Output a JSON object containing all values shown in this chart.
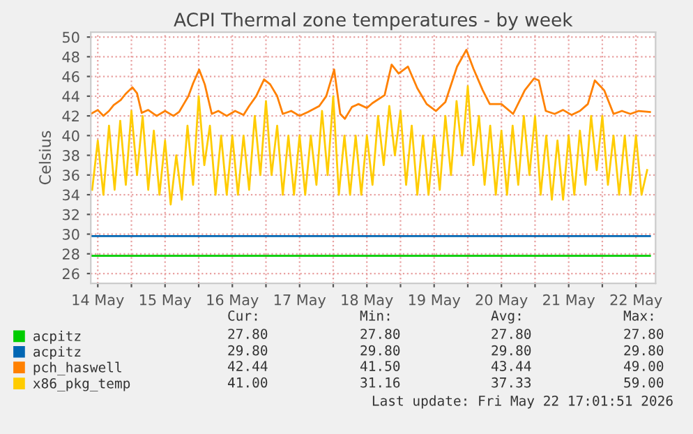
{
  "chart_data": {
    "type": "line",
    "title": "ACPI Thermal zone temperatures - by week",
    "ylabel": "Celsius",
    "xlim": [
      "2026-05-14T09:30",
      "2026-05-22T19:00"
    ],
    "xticks": [
      {
        "value": "2026-05-14T12:00",
        "label": "14 May"
      },
      {
        "value": "2026-05-15T00:00",
        "label": null
      },
      {
        "value": "2026-05-15T12:00",
        "label": "15 May"
      },
      {
        "value": "2026-05-16T00:00",
        "label": null
      },
      {
        "value": "2026-05-16T12:00",
        "label": "16 May"
      },
      {
        "value": "2026-05-17T00:00",
        "label": null
      },
      {
        "value": "2026-05-17T12:00",
        "label": "17 May"
      },
      {
        "value": "2026-05-18T00:00",
        "label": null
      },
      {
        "value": "2026-05-18T12:00",
        "label": "18 May"
      },
      {
        "value": "2026-05-19T00:00",
        "label": null
      },
      {
        "value": "2026-05-19T12:00",
        "label": "19 May"
      },
      {
        "value": "2026-05-20T00:00",
        "label": null
      },
      {
        "value": "2026-05-20T12:00",
        "label": "20 May"
      },
      {
        "value": "2026-05-21T00:00",
        "label": null
      },
      {
        "value": "2026-05-21T12:00",
        "label": "21 May"
      },
      {
        "value": "2026-05-22T00:00",
        "label": null
      },
      {
        "value": "2026-05-22T12:00",
        "label": "22 May"
      }
    ],
    "ylim": [
      25,
      50.5
    ],
    "yticks": [
      26,
      28,
      30,
      32,
      34,
      36,
      38,
      40,
      42,
      44,
      46,
      48,
      50
    ],
    "grid": true,
    "legend": "bottom",
    "marker": "none",
    "line_style": "solid",
    "series": [
      {
        "name": "acpitz",
        "color": "#00cc00",
        "x": [
          "2026-05-14T09:30",
          "2026-05-22T17:00"
        ],
        "values": [
          27.8,
          27.8
        ]
      },
      {
        "name": "acpitz",
        "color": "#0066b3",
        "x": [
          "2026-05-14T09:30",
          "2026-05-22T17:00"
        ],
        "values": [
          29.8,
          29.8
        ]
      },
      {
        "name": "pch_haswell",
        "color": "#ff8000",
        "x": [
          "2026-05-14T09:30",
          "2026-05-14T12:00",
          "2026-05-14T14:00",
          "2026-05-14T16:00",
          "2026-05-14T17:40",
          "2026-05-14T20:10",
          "2026-05-14T21:50",
          "2026-05-15T00:20",
          "2026-05-15T02:00",
          "2026-05-15T03:40",
          "2026-05-15T06:00",
          "2026-05-15T09:00",
          "2026-05-15T12:00",
          "2026-05-15T15:00",
          "2026-05-15T17:00",
          "2026-05-15T18:40",
          "2026-05-15T20:20",
          "2026-05-15T22:00",
          "2026-05-16T00:10",
          "2026-05-16T02:10",
          "2026-05-16T04:40",
          "2026-05-16T07:00",
          "2026-05-16T10:00",
          "2026-05-16T13:00",
          "2026-05-16T16:00",
          "2026-05-16T18:00",
          "2026-05-16T20:30",
          "2026-05-16T23:20",
          "2026-05-17T01:30",
          "2026-05-17T04:00",
          "2026-05-17T06:00",
          "2026-05-17T09:00",
          "2026-05-17T12:00",
          "2026-05-17T15:00",
          "2026-05-17T19:00",
          "2026-05-17T21:30",
          "2026-05-18T00:20",
          "2026-05-18T02:30",
          "2026-05-18T04:10",
          "2026-05-18T06:40",
          "2026-05-18T09:00",
          "2026-05-18T12:00",
          "2026-05-18T14:00",
          "2026-05-18T18:20",
          "2026-05-18T20:50",
          "2026-05-18T23:20",
          "2026-05-19T02:40",
          "2026-05-19T06:00",
          "2026-05-19T09:20",
          "2026-05-19T12:40",
          "2026-05-19T16:00",
          "2026-05-19T20:10",
          "2026-05-19T23:30",
          "2026-05-20T02:00",
          "2026-05-20T05:20",
          "2026-05-20T07:50",
          "2026-05-20T12:00",
          "2026-05-20T16:10",
          "2026-05-20T20:20",
          "2026-05-20T23:40",
          "2026-05-21T01:20",
          "2026-05-21T03:50",
          "2026-05-21T07:00",
          "2026-05-21T10:00",
          "2026-05-21T13:00",
          "2026-05-21T16:00",
          "2026-05-21T18:50",
          "2026-05-21T21:20",
          "2026-05-22T00:40",
          "2026-05-22T04:00",
          "2026-05-22T07:00",
          "2026-05-22T10:00",
          "2026-05-22T13:00",
          "2026-05-22T17:00"
        ],
        "values": [
          42.2,
          42.6,
          42.0,
          42.5,
          43.1,
          43.6,
          44.2,
          44.9,
          44.3,
          42.3,
          42.6,
          42.0,
          42.5,
          42.0,
          42.4,
          43.2,
          44.0,
          45.3,
          46.7,
          45.2,
          42.2,
          42.5,
          42.0,
          42.5,
          42.1,
          43.0,
          44.0,
          45.7,
          45.2,
          44.0,
          42.2,
          42.5,
          42.0,
          42.4,
          43.0,
          44.0,
          46.7,
          42.2,
          41.7,
          42.9,
          43.2,
          42.8,
          43.3,
          44.1,
          47.2,
          46.3,
          47.0,
          44.8,
          43.2,
          42.5,
          43.4,
          47.0,
          48.7,
          46.8,
          44.6,
          43.2,
          43.2,
          42.2,
          44.6,
          45.8,
          45.6,
          42.5,
          42.2,
          42.6,
          42.1,
          42.5,
          43.2,
          45.6,
          44.6,
          42.2,
          42.5,
          42.2,
          42.5,
          42.4
        ]
      },
      {
        "name": "x86_pkg_temp",
        "color": "#ffcc00",
        "x": [
          "2026-05-14T10:00",
          "2026-05-14T12:00",
          "2026-05-14T14:00",
          "2026-05-14T16:00",
          "2026-05-14T18:00",
          "2026-05-14T20:00",
          "2026-05-14T22:00",
          "2026-05-15T00:00",
          "2026-05-15T02:00",
          "2026-05-15T04:00",
          "2026-05-15T06:00",
          "2026-05-15T08:00",
          "2026-05-15T10:00",
          "2026-05-15T12:00",
          "2026-05-15T14:00",
          "2026-05-15T16:00",
          "2026-05-15T18:00",
          "2026-05-15T20:00",
          "2026-05-15T22:00",
          "2026-05-16T00:00",
          "2026-05-16T02:00",
          "2026-05-16T04:00",
          "2026-05-16T06:00",
          "2026-05-16T08:00",
          "2026-05-16T10:00",
          "2026-05-16T12:00",
          "2026-05-16T14:00",
          "2026-05-16T16:00",
          "2026-05-16T18:00",
          "2026-05-16T20:00",
          "2026-05-16T22:00",
          "2026-05-17T00:00",
          "2026-05-17T02:00",
          "2026-05-17T04:00",
          "2026-05-17T06:00",
          "2026-05-17T08:00",
          "2026-05-17T10:00",
          "2026-05-17T12:00",
          "2026-05-17T14:00",
          "2026-05-17T16:00",
          "2026-05-17T18:00",
          "2026-05-17T20:00",
          "2026-05-17T22:00",
          "2026-05-18T00:00",
          "2026-05-18T02:00",
          "2026-05-18T04:00",
          "2026-05-18T06:00",
          "2026-05-18T08:00",
          "2026-05-18T10:00",
          "2026-05-18T12:00",
          "2026-05-18T14:00",
          "2026-05-18T16:00",
          "2026-05-18T18:00",
          "2026-05-18T20:00",
          "2026-05-18T22:00",
          "2026-05-19T00:00",
          "2026-05-19T02:00",
          "2026-05-19T04:00",
          "2026-05-19T06:00",
          "2026-05-19T08:00",
          "2026-05-19T10:00",
          "2026-05-19T12:00",
          "2026-05-19T14:00",
          "2026-05-19T16:00",
          "2026-05-19T18:00",
          "2026-05-19T20:00",
          "2026-05-19T22:00",
          "2026-05-20T00:00",
          "2026-05-20T02:00",
          "2026-05-20T04:00",
          "2026-05-20T06:00",
          "2026-05-20T08:00",
          "2026-05-20T10:00",
          "2026-05-20T12:00",
          "2026-05-20T14:00",
          "2026-05-20T16:00",
          "2026-05-20T18:00",
          "2026-05-20T20:00",
          "2026-05-20T22:00",
          "2026-05-21T00:00",
          "2026-05-21T02:00",
          "2026-05-21T04:00",
          "2026-05-21T06:00",
          "2026-05-21T08:00",
          "2026-05-21T10:00",
          "2026-05-21T12:00",
          "2026-05-21T14:00",
          "2026-05-21T16:00",
          "2026-05-21T18:00",
          "2026-05-21T20:00",
          "2026-05-21T22:00",
          "2026-05-22T00:00",
          "2026-05-22T02:00",
          "2026-05-22T04:00",
          "2026-05-22T06:00",
          "2026-05-22T08:00",
          "2026-05-22T10:00",
          "2026-05-22T12:00",
          "2026-05-22T14:00",
          "2026-05-22T16:00"
        ],
        "values": [
          34.5,
          39.5,
          34,
          41,
          34.5,
          41.5,
          35,
          42.5,
          36,
          42,
          34.5,
          40.5,
          34,
          39.5,
          33,
          38,
          33.5,
          41,
          35,
          44,
          37,
          41,
          34,
          40,
          34,
          40,
          34,
          40,
          34.5,
          42,
          36,
          43.5,
          36,
          41,
          34,
          40,
          34,
          40,
          34,
          40,
          35,
          42.5,
          36,
          44,
          34,
          40,
          34,
          40,
          34,
          40,
          35,
          42,
          37,
          43,
          38,
          42.5,
          35,
          41,
          34,
          40,
          34,
          40,
          34.5,
          42,
          36,
          43.5,
          38,
          45,
          37,
          42,
          35,
          41,
          34,
          40.5,
          34,
          41,
          35,
          42,
          36,
          42,
          34,
          40,
          33.5,
          39.5,
          33.5,
          40,
          34,
          40.5,
          35,
          42,
          36.5,
          42,
          35,
          40,
          34,
          40,
          34,
          40,
          34,
          36.5
        ]
      }
    ],
    "annotations": [
      "Cur:",
      "Min:",
      "Avg:",
      "Max:",
      "27.80",
      "27.80",
      "27.80",
      "27.80",
      "29.80",
      "29.80",
      "29.80",
      "29.80",
      "42.44",
      "41.50",
      "43.44",
      "49.00",
      "41.00",
      "31.16",
      "37.33",
      "59.00",
      "Last update: Fri May 22 17:01:51 2026"
    ]
  }
}
